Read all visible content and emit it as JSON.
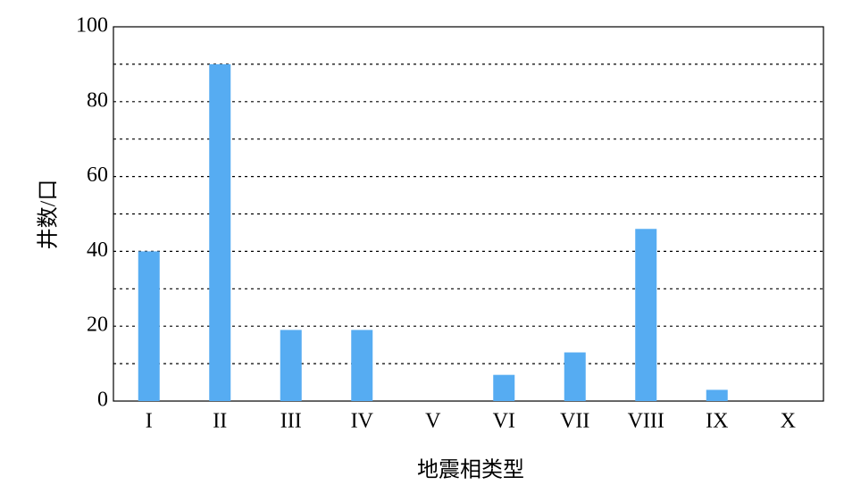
{
  "chart_data": {
    "type": "bar",
    "xlabel": "地震相类型",
    "ylabel": "井数/口",
    "categories": [
      "I",
      "II",
      "III",
      "IV",
      "V",
      "VI",
      "VII",
      "VIII",
      "IX",
      "X"
    ],
    "values": [
      40,
      90,
      19,
      19,
      0,
      7,
      13,
      46,
      3,
      0
    ],
    "color": "#56acf2",
    "ylim": [
      0,
      100
    ],
    "yticks": [
      0,
      20,
      40,
      60,
      80,
      100
    ],
    "yminorticks": [
      10,
      30,
      50,
      70,
      90
    ],
    "grid": true
  }
}
